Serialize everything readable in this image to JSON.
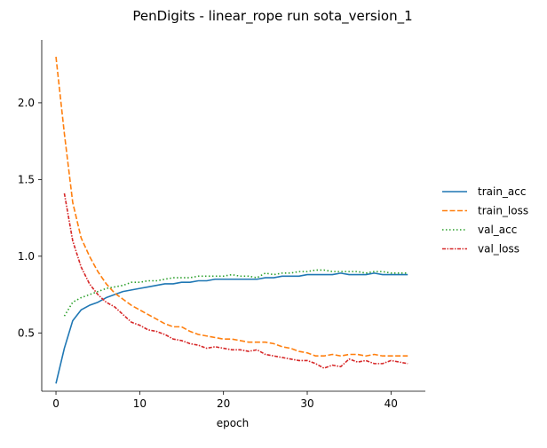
{
  "chart_data": {
    "type": "line",
    "title": "PenDigits - linear_rope run sota_version_1",
    "xlabel": "epoch",
    "ylabel": "",
    "xlim": [
      -1.7,
      44.1
    ],
    "ylim": [
      0.12,
      2.41
    ],
    "xticks": [
      0,
      10,
      20,
      30,
      40
    ],
    "yticks": [
      0.5,
      1.0,
      1.5,
      2.0
    ],
    "xtick_labels": [
      "0",
      "10",
      "20",
      "30",
      "40"
    ],
    "ytick_labels": [
      "0.5",
      "1.0",
      "1.5",
      "2.0"
    ],
    "grid": false,
    "legend_position": "right",
    "series": [
      {
        "name": "train_acc",
        "color": "#1f77b4",
        "dash": "solid",
        "x": [
          0,
          1,
          2,
          3,
          4,
          5,
          6,
          7,
          8,
          9,
          10,
          11,
          12,
          13,
          14,
          15,
          16,
          17,
          18,
          19,
          20,
          21,
          22,
          23,
          24,
          25,
          26,
          27,
          28,
          29,
          30,
          31,
          32,
          33,
          34,
          35,
          36,
          37,
          38,
          39,
          40,
          41,
          42
        ],
        "y": [
          0.17,
          0.4,
          0.58,
          0.65,
          0.68,
          0.7,
          0.73,
          0.75,
          0.77,
          0.78,
          0.79,
          0.8,
          0.81,
          0.82,
          0.82,
          0.83,
          0.83,
          0.84,
          0.84,
          0.85,
          0.85,
          0.85,
          0.85,
          0.85,
          0.85,
          0.86,
          0.86,
          0.87,
          0.87,
          0.87,
          0.88,
          0.88,
          0.88,
          0.88,
          0.89,
          0.88,
          0.88,
          0.88,
          0.89,
          0.88,
          0.88,
          0.88,
          0.88
        ]
      },
      {
        "name": "train_loss",
        "color": "#ff7f0e",
        "dash": "dashed",
        "x": [
          0,
          1,
          2,
          3,
          4,
          5,
          6,
          7,
          8,
          9,
          10,
          11,
          12,
          13,
          14,
          15,
          16,
          17,
          18,
          19,
          20,
          21,
          22,
          23,
          24,
          25,
          26,
          27,
          28,
          29,
          30,
          31,
          32,
          33,
          34,
          35,
          36,
          37,
          38,
          39,
          40,
          41,
          42
        ],
        "y": [
          2.3,
          1.8,
          1.35,
          1.12,
          1.0,
          0.9,
          0.82,
          0.76,
          0.72,
          0.68,
          0.65,
          0.62,
          0.59,
          0.56,
          0.54,
          0.54,
          0.51,
          0.49,
          0.48,
          0.47,
          0.46,
          0.46,
          0.45,
          0.44,
          0.44,
          0.44,
          0.43,
          0.41,
          0.4,
          0.38,
          0.37,
          0.35,
          0.35,
          0.36,
          0.35,
          0.36,
          0.36,
          0.35,
          0.36,
          0.35,
          0.35,
          0.35,
          0.35
        ]
      },
      {
        "name": "val_acc",
        "color": "#2ca02c",
        "dash": "dotted",
        "x": [
          1,
          2,
          3,
          4,
          5,
          6,
          7,
          8,
          9,
          10,
          11,
          12,
          13,
          14,
          15,
          16,
          17,
          18,
          19,
          20,
          21,
          22,
          23,
          24,
          25,
          26,
          27,
          28,
          29,
          30,
          31,
          32,
          33,
          34,
          35,
          36,
          37,
          38,
          39,
          40,
          41,
          42
        ],
        "y": [
          0.61,
          0.7,
          0.73,
          0.75,
          0.77,
          0.79,
          0.8,
          0.81,
          0.83,
          0.83,
          0.84,
          0.84,
          0.85,
          0.86,
          0.86,
          0.86,
          0.87,
          0.87,
          0.87,
          0.87,
          0.88,
          0.87,
          0.87,
          0.86,
          0.89,
          0.88,
          0.89,
          0.89,
          0.9,
          0.9,
          0.91,
          0.91,
          0.9,
          0.9,
          0.9,
          0.9,
          0.89,
          0.9,
          0.9,
          0.89,
          0.89,
          0.89
        ]
      },
      {
        "name": "val_loss",
        "color": "#d62728",
        "dash": "dashdot",
        "x": [
          1,
          2,
          3,
          4,
          5,
          6,
          7,
          8,
          9,
          10,
          11,
          12,
          13,
          14,
          15,
          16,
          17,
          18,
          19,
          20,
          21,
          22,
          23,
          24,
          25,
          26,
          27,
          28,
          29,
          30,
          31,
          32,
          33,
          34,
          35,
          36,
          37,
          38,
          39,
          40,
          41,
          42
        ],
        "y": [
          1.41,
          1.1,
          0.93,
          0.82,
          0.75,
          0.7,
          0.67,
          0.62,
          0.57,
          0.55,
          0.52,
          0.51,
          0.49,
          0.46,
          0.45,
          0.43,
          0.42,
          0.4,
          0.41,
          0.4,
          0.39,
          0.39,
          0.38,
          0.39,
          0.36,
          0.35,
          0.34,
          0.33,
          0.32,
          0.32,
          0.3,
          0.27,
          0.29,
          0.28,
          0.33,
          0.31,
          0.32,
          0.3,
          0.3,
          0.32,
          0.31,
          0.3
        ]
      }
    ]
  }
}
